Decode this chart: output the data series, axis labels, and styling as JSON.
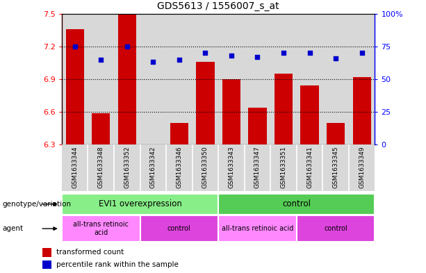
{
  "title": "GDS5613 / 1556007_s_at",
  "samples": [
    "GSM1633344",
    "GSM1633348",
    "GSM1633352",
    "GSM1633342",
    "GSM1633346",
    "GSM1633350",
    "GSM1633343",
    "GSM1633347",
    "GSM1633351",
    "GSM1633341",
    "GSM1633345",
    "GSM1633349"
  ],
  "bar_values": [
    7.36,
    6.59,
    7.5,
    6.305,
    6.5,
    7.06,
    6.9,
    6.64,
    6.95,
    6.84,
    6.5,
    6.92
  ],
  "dot_values": [
    75,
    65,
    75,
    63,
    65,
    70,
    68,
    67,
    70,
    70,
    66,
    70
  ],
  "bar_color": "#cc0000",
  "dot_color": "#0000cc",
  "ylim_left": [
    6.3,
    7.5
  ],
  "ylim_right": [
    0,
    100
  ],
  "yticks_left": [
    6.3,
    6.6,
    6.9,
    7.2,
    7.5
  ],
  "yticks_right": [
    0,
    25,
    50,
    75,
    100
  ],
  "ytick_labels_right": [
    "0",
    "25",
    "50",
    "75",
    "100%"
  ],
  "hline_values": [
    6.6,
    6.9,
    7.2
  ],
  "genotype_groups": [
    {
      "label": "EVI1 overexpression",
      "start": 0,
      "end": 6,
      "color": "#88ee88"
    },
    {
      "label": "control",
      "start": 6,
      "end": 12,
      "color": "#55cc55"
    }
  ],
  "agent_groups": [
    {
      "label": "all-trans retinoic\nacid",
      "start": 0,
      "end": 3,
      "color": "#ff88ff"
    },
    {
      "label": "control",
      "start": 3,
      "end": 6,
      "color": "#dd44dd"
    },
    {
      "label": "all-trans retinoic acid",
      "start": 6,
      "end": 9,
      "color": "#ff88ff"
    },
    {
      "label": "control",
      "start": 9,
      "end": 12,
      "color": "#dd44dd"
    }
  ],
  "legend_bar_label": "transformed count",
  "legend_dot_label": "percentile rank within the sample",
  "genotype_label": "genotype/variation",
  "agent_label": "agent",
  "col_bg_color": "#d8d8d8"
}
